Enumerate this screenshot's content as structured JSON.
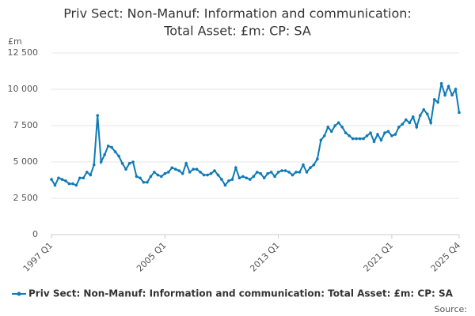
{
  "chart_data": {
    "type": "line",
    "title": [
      "Priv Sect: Non-Manuf: Information and communication:",
      "Total Asset: £m: CP: SA"
    ],
    "y_label": "£m",
    "source": "Source:",
    "categories": [
      "1997 Q1",
      null,
      null,
      null,
      null,
      null,
      null,
      null,
      null,
      null,
      null,
      null,
      null,
      null,
      null,
      null,
      null,
      null,
      null,
      null,
      null,
      null,
      null,
      null,
      null,
      null,
      null,
      null,
      null,
      null,
      null,
      null,
      "2005 Q1",
      null,
      null,
      null,
      null,
      null,
      null,
      null,
      null,
      null,
      null,
      null,
      null,
      null,
      null,
      null,
      null,
      null,
      null,
      null,
      null,
      null,
      null,
      null,
      null,
      null,
      null,
      null,
      null,
      null,
      null,
      null,
      "2013 Q1",
      null,
      null,
      null,
      null,
      null,
      null,
      null,
      null,
      null,
      null,
      null,
      null,
      null,
      null,
      null,
      null,
      null,
      null,
      null,
      null,
      null,
      null,
      null,
      null,
      null,
      null,
      null,
      null,
      null,
      null,
      null,
      "2021 Q1",
      null,
      null,
      null,
      null,
      null,
      null,
      null,
      null,
      null,
      null,
      null,
      null,
      null,
      null,
      null,
      null,
      null,
      null,
      "2025 Q4"
    ],
    "series": [
      {
        "name": "Priv Sect: Non-Manuf: Information and communication: Total Asset: £m: CP: SA",
        "color": "#0f7ab5",
        "values": [
          3800,
          3400,
          3900,
          3800,
          3700,
          3500,
          3500,
          3400,
          3900,
          3900,
          4300,
          4100,
          4800,
          8200,
          5000,
          5500,
          6100,
          6000,
          5700,
          5400,
          4900,
          4500,
          4900,
          5000,
          4000,
          3900,
          3600,
          3600,
          4000,
          4300,
          4100,
          4000,
          4200,
          4300,
          4600,
          4500,
          4400,
          4200,
          4900,
          4300,
          4500,
          4500,
          4300,
          4100,
          4100,
          4200,
          4400,
          4100,
          3800,
          3400,
          3700,
          3800,
          4600,
          3900,
          4000,
          3900,
          3800,
          4000,
          4300,
          4200,
          3900,
          4200,
          4300,
          4000,
          4300,
          4400,
          4400,
          4300,
          4100,
          4300,
          4300,
          4800,
          4300,
          4600,
          4800,
          5200,
          6500,
          6800,
          7400,
          7100,
          7500,
          7700,
          7400,
          7000,
          6800,
          6600,
          6600,
          6600,
          6600,
          6800,
          7000,
          6400,
          6900,
          6500,
          7000,
          7100,
          6800,
          6900,
          7400,
          7600,
          7900,
          7700,
          8100,
          7400,
          8200,
          8600,
          8300,
          7700,
          9300,
          9100,
          10400,
          9600,
          10200,
          9600,
          10000,
          8400
        ]
      }
    ],
    "ylim": [
      0,
      12500
    ],
    "yticks": [
      0,
      {
        "value": 2500,
        "label": "2 500"
      },
      {
        "value": 5000,
        "label": "5 000"
      },
      {
        "value": 7500,
        "label": "7 500"
      },
      {
        "value": 10000,
        "label": "10 000"
      },
      {
        "value": 12500,
        "label": "12 500"
      }
    ],
    "grid": true
  }
}
